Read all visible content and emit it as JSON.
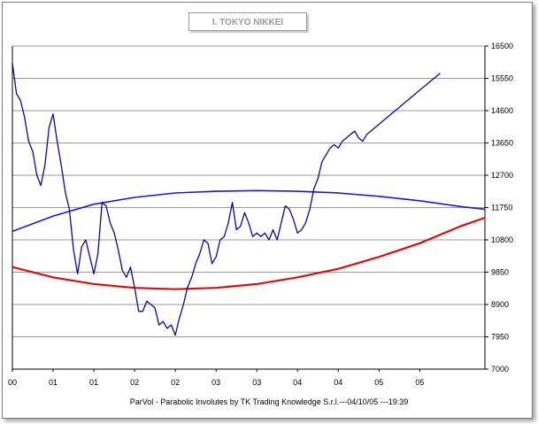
{
  "window": {
    "credit": "ParVol - Parabolic Involutes by TK Trading Knowledge S.r.l.---04/10/05 ---19:39"
  },
  "chart_data": {
    "type": "line",
    "title": "I. TOKYO NIKKEI",
    "xlabel": "",
    "ylabel": "",
    "ylim": [
      7000,
      16500
    ],
    "xlim": [
      2000.0,
      2005.8
    ],
    "y_ticks": [
      "16500",
      "15550",
      "14600",
      "13650",
      "12700",
      "11750",
      "10800",
      "9850",
      "8900",
      "7950",
      "7000"
    ],
    "x_tick_labels": [
      {
        "x": 2000.0,
        "label": "00"
      },
      {
        "x": 2000.5,
        "label": "01"
      },
      {
        "x": 2001.0,
        "label": "01"
      },
      {
        "x": 2001.5,
        "label": "02"
      },
      {
        "x": 2002.0,
        "label": "02"
      },
      {
        "x": 2002.5,
        "label": "03"
      },
      {
        "x": 2003.0,
        "label": "03"
      },
      {
        "x": 2003.5,
        "label": "04"
      },
      {
        "x": 2004.0,
        "label": "04"
      },
      {
        "x": 2004.5,
        "label": "05"
      },
      {
        "x": 2005.0,
        "label": "05"
      }
    ],
    "grid": "horizontal",
    "colors": {
      "price": "#0a0a8c",
      "upper_parabola": "#1a1adc",
      "lower_parabola": "#d81010"
    },
    "series": [
      {
        "x": [
          2000.0,
          2000.05,
          2000.1,
          2000.15,
          2000.2,
          2000.25,
          2000.3,
          2000.35,
          2000.4,
          2000.45,
          2000.5,
          2000.55,
          2000.6,
          2000.65,
          2000.7,
          2000.75,
          2000.8,
          2000.85,
          2000.9,
          2000.95,
          2001.0,
          2001.05,
          2001.1,
          2001.15,
          2001.2,
          2001.25,
          2001.3,
          2001.35,
          2001.4,
          2001.45,
          2001.5,
          2001.55,
          2001.6,
          2001.65,
          2001.7,
          2001.75,
          2001.8,
          2001.85,
          2001.9,
          2001.95,
          2002.0,
          2002.05,
          2002.1,
          2002.15,
          2002.2,
          2002.25,
          2002.3,
          2002.35,
          2002.4,
          2002.45,
          2002.5,
          2002.55,
          2002.6,
          2002.65,
          2002.7,
          2002.75,
          2002.8,
          2002.85,
          2002.9,
          2002.95,
          2003.0,
          2003.05,
          2003.1,
          2003.15,
          2003.2,
          2003.25,
          2003.3,
          2003.35,
          2003.4,
          2003.45,
          2003.5,
          2003.55,
          2003.6,
          2003.65,
          2003.7,
          2003.75,
          2003.8,
          2003.85,
          2003.9,
          2003.95,
          2004.0,
          2004.05,
          2004.1,
          2004.15,
          2004.2,
          2004.25,
          2004.3,
          2004.35,
          2004.4,
          2004.45,
          2004.5,
          2004.55,
          2004.6,
          2004.65,
          2004.7,
          2004.75,
          2004.8,
          2004.85,
          2004.9,
          2004.95,
          2005.0,
          2005.05,
          2005.1,
          2005.15,
          2005.2,
          2005.25
        ],
        "values": [
          16000,
          15100,
          14900,
          14400,
          13700,
          13400,
          12700,
          12400,
          13000,
          14100,
          14500,
          13700,
          13000,
          12200,
          11700,
          10500,
          9800,
          10600,
          10800,
          10300,
          9800,
          10400,
          11900,
          11800,
          11300,
          11000,
          10500,
          9900,
          9700,
          10000,
          9400,
          8700,
          8700,
          9000,
          8900,
          8800,
          8300,
          8400,
          8200,
          8300,
          8000,
          8500,
          8900,
          9400,
          9700,
          10100,
          10400,
          10800,
          10700,
          10100,
          10300,
          10800,
          10900,
          11300,
          11900,
          11100,
          11200,
          11600,
          11300,
          10900,
          11000,
          10900,
          11000,
          10800,
          11100,
          10800,
          11300,
          11800,
          11700,
          11400,
          11000,
          11100,
          11300,
          11700,
          12300,
          12600,
          13100,
          13300,
          13500,
          13600,
          13500,
          13700,
          13800,
          13900,
          14000,
          13800,
          13700,
          13900,
          14000,
          14100,
          14200,
          14300,
          14400,
          14500,
          14600,
          14700,
          14800,
          14900,
          15000,
          15100,
          15200,
          15300,
          15400,
          15500,
          15600,
          15700
        ]
      },
      {
        "x": [
          2000.0,
          2000.5,
          2001.0,
          2001.5,
          2002.0,
          2002.5,
          2003.0,
          2003.5,
          2004.0,
          2004.5,
          2005.0,
          2005.5,
          2005.8
        ],
        "values": [
          11050,
          11500,
          11850,
          12050,
          12180,
          12230,
          12250,
          12230,
          12180,
          12080,
          11950,
          11780,
          11700
        ]
      },
      {
        "x": [
          2000.0,
          2000.5,
          2001.0,
          2001.5,
          2002.0,
          2002.5,
          2003.0,
          2003.5,
          2004.0,
          2004.5,
          2005.0,
          2005.5,
          2005.8
        ],
        "values": [
          10000,
          9700,
          9500,
          9390,
          9350,
          9390,
          9500,
          9700,
          9950,
          10300,
          10700,
          11200,
          11450
        ]
      }
    ]
  }
}
